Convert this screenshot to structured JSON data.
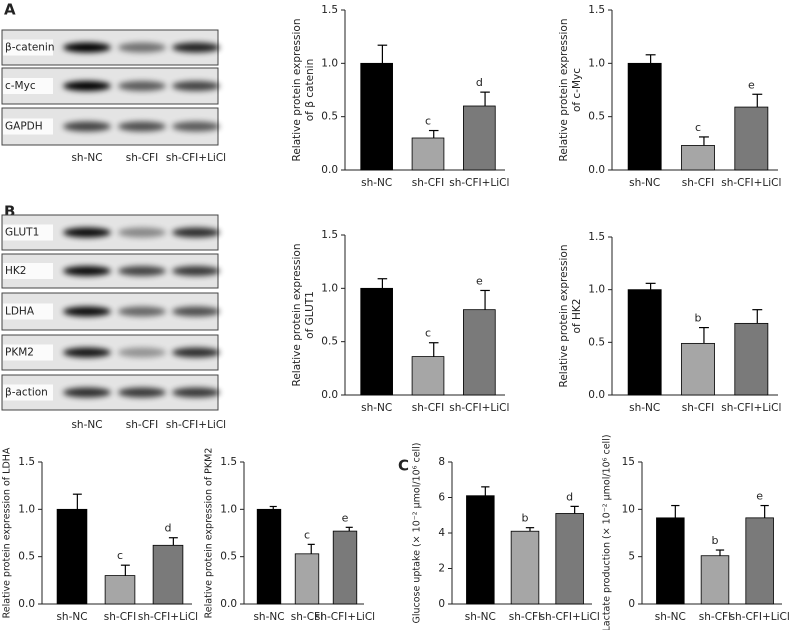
{
  "panels": [
    "A",
    "B",
    "C"
  ],
  "blots": [
    {
      "rows": [
        "β-catenin",
        "c-Myc",
        "GAPDH"
      ],
      "lanes": [
        "sh-NC",
        "sh-CFI",
        "sh-CFI+LiCl"
      ]
    },
    {
      "rows": [
        "GLUT1",
        "HK2",
        "LDHA",
        "PKM2",
        "β-action"
      ],
      "lanes": [
        "sh-NC",
        "sh-CFI",
        "sh-CFI+LiCl"
      ]
    }
  ],
  "chart_data": [
    {
      "type": "bar",
      "ylabel": [
        "Relative protein expression",
        "of β catenin"
      ],
      "categories": [
        "sh-NC",
        "sh-CFI",
        "sh-CFI+LiCl"
      ],
      "values": [
        1.0,
        0.3,
        0.6
      ],
      "errors": [
        0.17,
        0.07,
        0.13
      ],
      "annotations": [
        null,
        "c",
        "d"
      ],
      "colors": [
        "#000000",
        "#a6a6a6",
        "#7a7a7a"
      ],
      "ylim": [
        0,
        1.5
      ],
      "yticks": [
        {
          "value": 0,
          "label": "0.0"
        },
        {
          "value": 0.5,
          "label": "0.5"
        },
        {
          "value": 1,
          "label": "1.0"
        },
        {
          "value": 1.5,
          "label": "1.5"
        }
      ]
    },
    {
      "type": "bar",
      "ylabel": [
        "Relative protein expression",
        "of c-Myc"
      ],
      "categories": [
        "sh-NC",
        "sh-CFI",
        "sh-CFI+LiCl"
      ],
      "values": [
        1.0,
        0.23,
        0.59
      ],
      "errors": [
        0.08,
        0.08,
        0.12
      ],
      "annotations": [
        null,
        "c",
        "e"
      ],
      "colors": [
        "#000000",
        "#a6a6a6",
        "#7a7a7a"
      ],
      "ylim": [
        0,
        1.5
      ],
      "yticks": [
        {
          "value": 0,
          "label": "0.0"
        },
        {
          "value": 0.5,
          "label": "0.5"
        },
        {
          "value": 1,
          "label": "1.0"
        },
        {
          "value": 1.5,
          "label": "1.5"
        }
      ]
    },
    {
      "type": "bar",
      "ylabel": [
        "Relative protein expression",
        "of GLUT1"
      ],
      "categories": [
        "sh-NC",
        "sh-CFI",
        "sh-CFI+LiCl"
      ],
      "values": [
        1.0,
        0.36,
        0.8
      ],
      "errors": [
        0.09,
        0.13,
        0.18
      ],
      "annotations": [
        null,
        "c",
        "e"
      ],
      "colors": [
        "#000000",
        "#a6a6a6",
        "#7a7a7a"
      ],
      "ylim": [
        0,
        1.5
      ],
      "yticks": [
        {
          "value": 0,
          "label": "0.0"
        },
        {
          "value": 0.5,
          "label": "0.5"
        },
        {
          "value": 1,
          "label": "1.0"
        },
        {
          "value": 1.5,
          "label": "1.5"
        }
      ]
    },
    {
      "type": "bar",
      "ylabel": [
        "Relative protein expression",
        "of HK2"
      ],
      "categories": [
        "sh-NC",
        "sh-CFI",
        "sh-CFI+LiCl"
      ],
      "values": [
        1.0,
        0.49,
        0.68
      ],
      "errors": [
        0.06,
        0.15,
        0.13
      ],
      "annotations": [
        null,
        "b",
        null
      ],
      "colors": [
        "#000000",
        "#a6a6a6",
        "#7a7a7a"
      ],
      "ylim": [
        0,
        1.5
      ],
      "yticks": [
        {
          "value": 0,
          "label": "0.0"
        },
        {
          "value": 0.5,
          "label": "0.5"
        },
        {
          "value": 1,
          "label": "1.0"
        },
        {
          "value": 1.5,
          "label": "1.5"
        }
      ]
    },
    {
      "type": "bar",
      "ylabel": [
        "Relative protein expression of LDHA"
      ],
      "categories": [
        "sh-NC",
        "sh-CFI",
        "sh-CFI+LiCl"
      ],
      "values": [
        1.0,
        0.3,
        0.62
      ],
      "errors": [
        0.16,
        0.11,
        0.08
      ],
      "annotations": [
        null,
        "c",
        "d"
      ],
      "colors": [
        "#000000",
        "#a6a6a6",
        "#7a7a7a"
      ],
      "ylim": [
        0,
        1.5
      ],
      "yticks": [
        {
          "value": 0,
          "label": "0.0"
        },
        {
          "value": 0.5,
          "label": "0.5"
        },
        {
          "value": 1,
          "label": "1.0"
        },
        {
          "value": 1.5,
          "label": "1.5"
        }
      ]
    },
    {
      "type": "bar",
      "ylabel": [
        "Relative protein expression of PKM2"
      ],
      "categories": [
        "sh-NC",
        "sh-CFI",
        "sh-CFI+LiCl"
      ],
      "values": [
        1.0,
        0.53,
        0.77
      ],
      "errors": [
        0.03,
        0.1,
        0.04
      ],
      "annotations": [
        null,
        "c",
        "e"
      ],
      "colors": [
        "#000000",
        "#a6a6a6",
        "#7a7a7a"
      ],
      "ylim": [
        0,
        1.5
      ],
      "yticks": [
        {
          "value": 0,
          "label": "0.0"
        },
        {
          "value": 0.5,
          "label": "0.5"
        },
        {
          "value": 1,
          "label": "1.0"
        },
        {
          "value": 1.5,
          "label": "1.5"
        }
      ]
    },
    {
      "type": "bar",
      "ylabel": [
        "Glucose uptake (× 10⁻² μmol/10⁶ cell)"
      ],
      "categories": [
        "sh-NC",
        "sh-CFI",
        "sh-CFI+LiCl"
      ],
      "values": [
        6.1,
        4.1,
        5.1
      ],
      "errors": [
        0.5,
        0.2,
        0.4
      ],
      "annotations": [
        null,
        "b",
        "d"
      ],
      "colors": [
        "#000000",
        "#a6a6a6",
        "#7a7a7a"
      ],
      "ylim": [
        0,
        8
      ],
      "yticks": [
        0,
        2,
        4,
        6,
        8
      ]
    },
    {
      "type": "bar",
      "ylabel": [
        "Lactate production (× 10⁻² μmol/10⁶ cell)"
      ],
      "categories": [
        "sh-NC",
        "sh-CFI",
        "sh-CFI+LiCl"
      ],
      "values": [
        9.1,
        5.1,
        9.1
      ],
      "errors": [
        1.3,
        0.6,
        1.3
      ],
      "annotations": [
        null,
        "b",
        "e"
      ],
      "colors": [
        "#000000",
        "#a6a6a6",
        "#7a7a7a"
      ],
      "ylim": [
        0,
        15
      ],
      "yticks": [
        0,
        5,
        10,
        15
      ]
    }
  ]
}
